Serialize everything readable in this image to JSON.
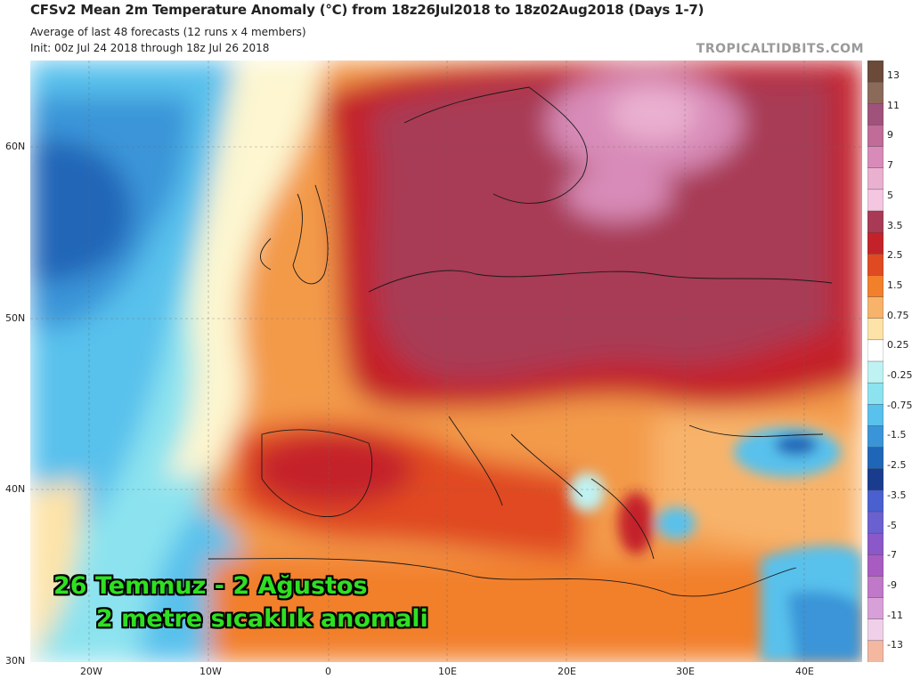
{
  "header": {
    "title": "CFSv2 Mean 2m Temperature Anomaly (°C) from 18z26Jul2018 to 18z02Aug2018 (Days 1-7)",
    "subtitle": "Average of last 48 forecasts (12 runs x 4 members)",
    "init": "Init: 00z Jul 24 2018 through 18z Jul 26 2018",
    "watermark": "TROPICALTIDBITS.COM"
  },
  "axes": {
    "lat_labels": [
      "60N",
      "50N",
      "40N",
      "30N"
    ],
    "lon_labels": [
      "20W",
      "10W",
      "0",
      "10E",
      "20E",
      "30E",
      "40E"
    ]
  },
  "colorbar": {
    "labels": [
      "13",
      "11",
      "9",
      "7",
      "5",
      "3.5",
      "2.5",
      "1.5",
      "0.75",
      "0.25",
      "-0.25",
      "-0.75",
      "-1.5",
      "-2.5",
      "-3.5",
      "-5",
      "-7",
      "-9",
      "-11",
      "-13"
    ],
    "colors": [
      "#6b4a3a",
      "#8b6a5a",
      "#a0527a",
      "#c06b98",
      "#d88bb8",
      "#eab0d0",
      "#f4c6e0",
      "#a83a55",
      "#c4222a",
      "#e04a22",
      "#f27f2a",
      "#f8b36a",
      "#fde3a8",
      "#ffffff",
      "#bff2f2",
      "#8ce3ef",
      "#58c1ec",
      "#3a95d8",
      "#2066b8",
      "#1a3c8e",
      "#4a5fd0",
      "#6a60d0",
      "#8a58c8",
      "#a85bc0",
      "#c078c8",
      "#d8a0d8",
      "#f0d0e8",
      "#f4b8a0"
    ]
  },
  "caption": {
    "line1": "26 Temmuz - 2 Ağustos",
    "line2": "2 metre sıcaklık  anomali"
  },
  "colors": {
    "ocean_cool": "#8ce3ef",
    "deep_cool": "#3a95d8",
    "warm_orange": "#f27f2a",
    "hot_red": "#c4222a",
    "very_hot": "#a83a55",
    "extreme": "#d88bb8",
    "caption_green": "#2ee021"
  }
}
